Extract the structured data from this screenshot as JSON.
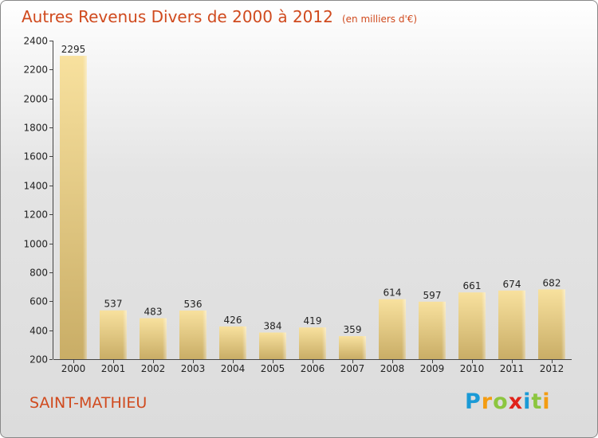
{
  "chart_data": {
    "type": "bar",
    "title": "Autres Revenus Divers de 2000 à 2012",
    "subtitle": "(en milliers d'€)",
    "categories": [
      "2000",
      "2001",
      "2002",
      "2003",
      "2004",
      "2005",
      "2006",
      "2007",
      "2008",
      "2009",
      "2010",
      "2011",
      "2012"
    ],
    "values": [
      2295,
      537,
      483,
      536,
      426,
      384,
      419,
      359,
      614,
      597,
      661,
      674,
      682
    ],
    "ylim": [
      200,
      2400
    ],
    "yticks": [
      200,
      400,
      600,
      800,
      1000,
      1200,
      1400,
      1600,
      1800,
      2000,
      2200,
      2400
    ],
    "xlabel": "",
    "ylabel": "",
    "grid": false,
    "bar_color": "#e8cf85"
  },
  "place": "SAINT-MATHIEU",
  "logo": {
    "letters": [
      {
        "ch": "P",
        "color": "#1a9ad6"
      },
      {
        "ch": "r",
        "color": "#f39c12"
      },
      {
        "ch": "o",
        "color": "#8cc63f"
      },
      {
        "ch": "x",
        "color": "#e0231a"
      },
      {
        "ch": "i",
        "color": "#1a9ad6"
      },
      {
        "ch": "t",
        "color": "#8cc63f"
      },
      {
        "ch": "i",
        "color": "#f39c12"
      }
    ]
  }
}
